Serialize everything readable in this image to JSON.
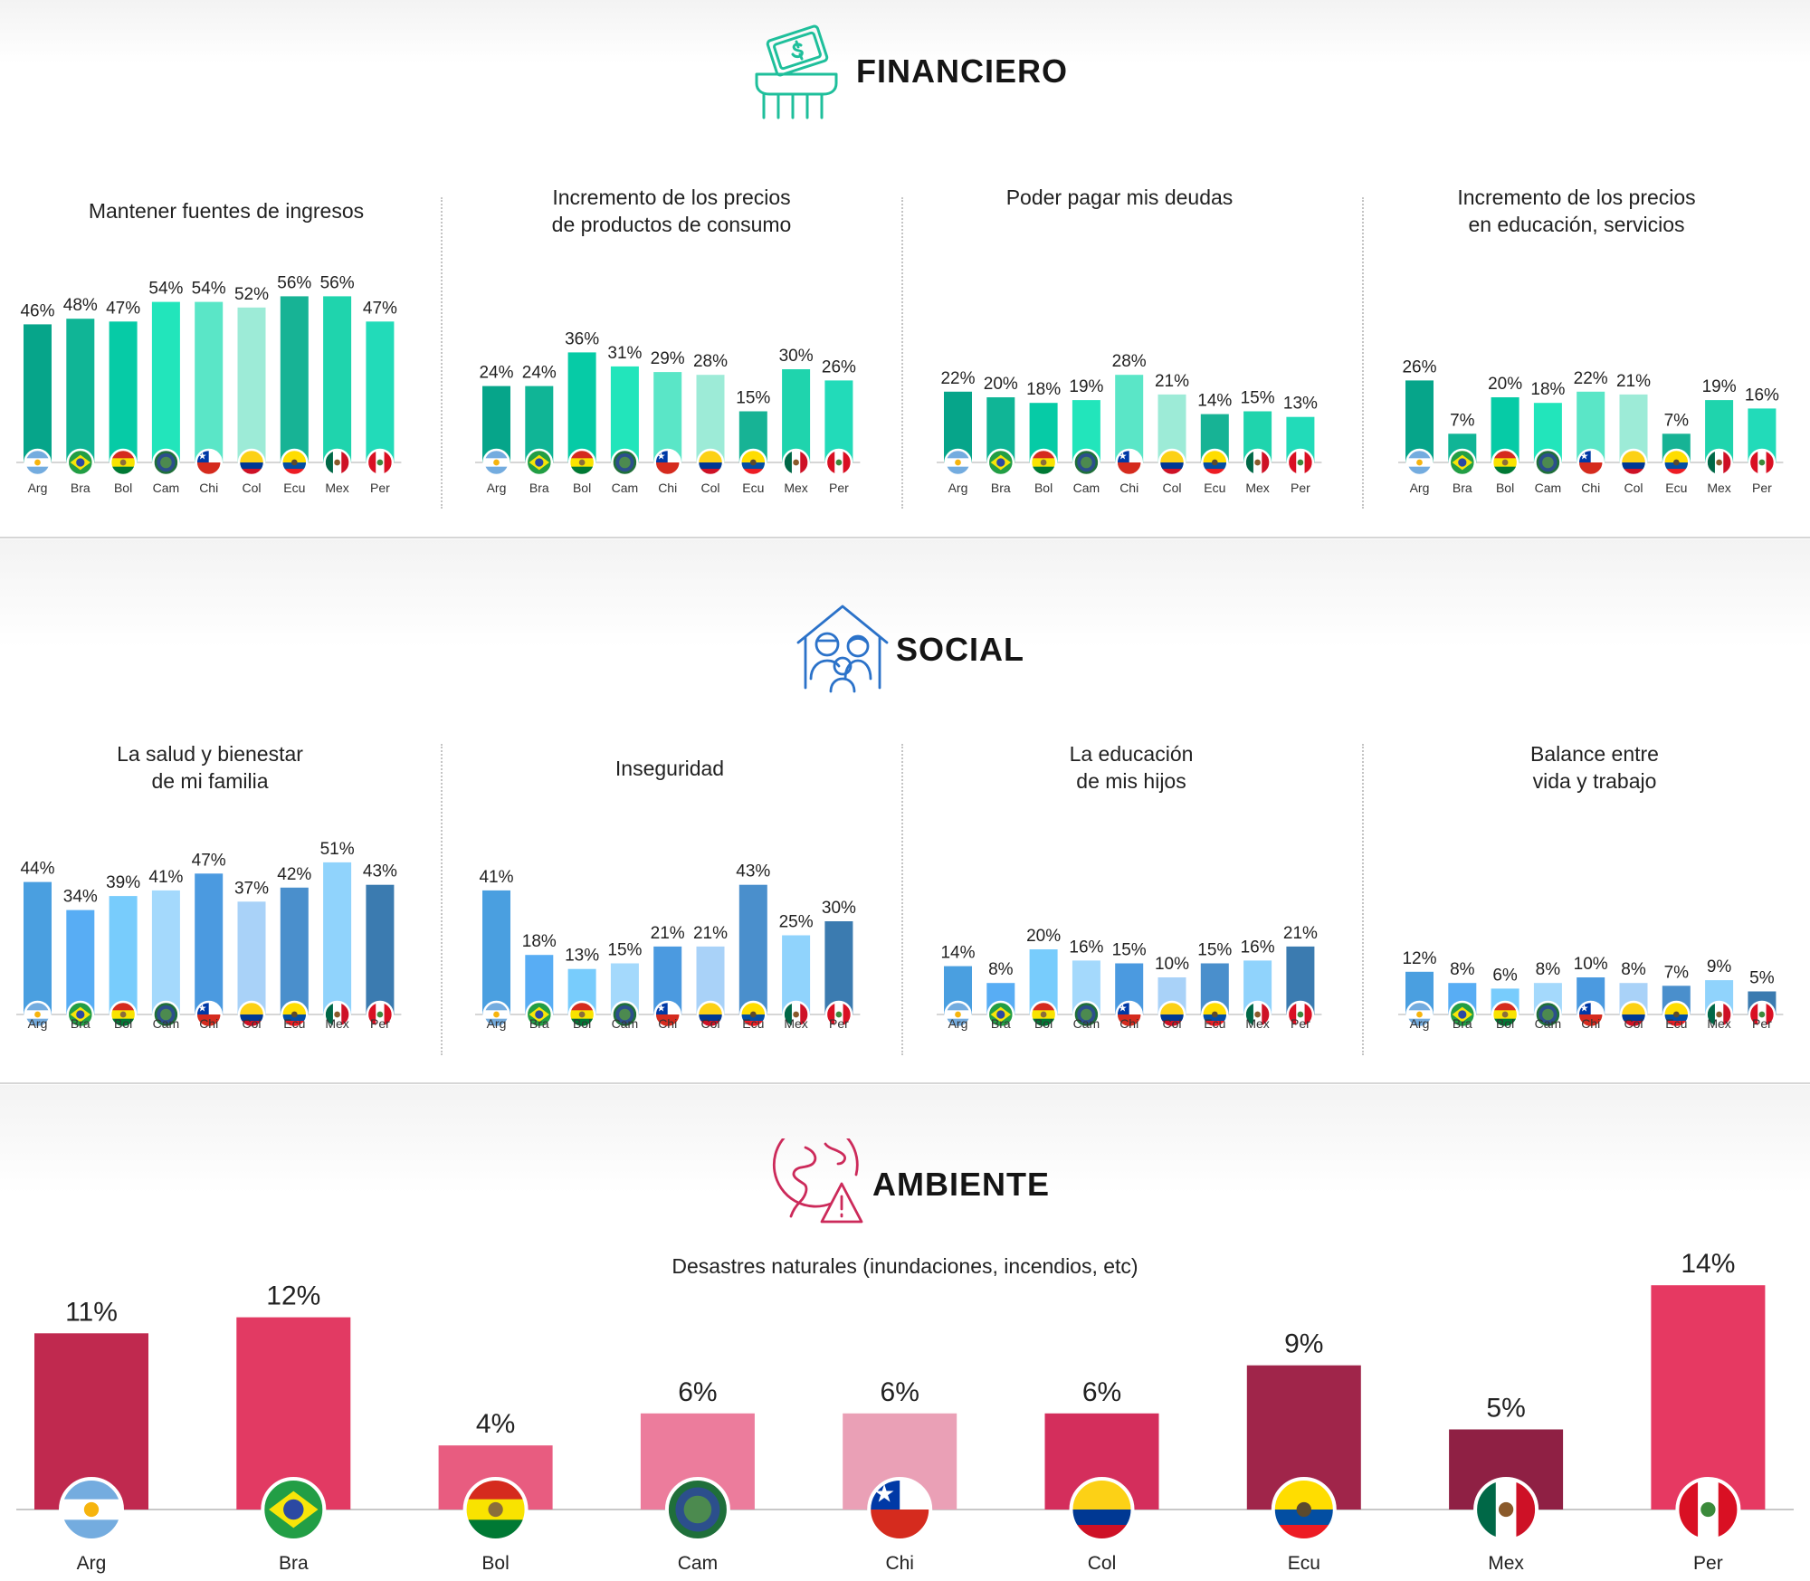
{
  "countries": [
    "Arg",
    "Bra",
    "Bol",
    "Cam",
    "Chi",
    "Col",
    "Ecu",
    "Mex",
    "Per"
  ],
  "sections": {
    "financiero": {
      "title": "FINANCIERO",
      "icon": "money-cash-register-icon",
      "color": "#1fbf9b"
    },
    "social": {
      "title": "SOCIAL",
      "icon": "family-house-icon",
      "color": "#2b72c9"
    },
    "ambiente": {
      "title": "AMBIENTE",
      "icon": "globe-warning-icon",
      "color": "#cc2a5a"
    }
  },
  "chart_data": [
    {
      "type": "bar",
      "section": "financiero",
      "title": "Mantener fuentes de ingresos",
      "categories": [
        "Arg",
        "Bra",
        "Bol",
        "Cam",
        "Chi",
        "Col",
        "Ecu",
        "Mex",
        "Per"
      ],
      "values": [
        46,
        48,
        47,
        54,
        54,
        52,
        56,
        56,
        47
      ],
      "labels": [
        "46%",
        "48%",
        "47%",
        "54%",
        "54%",
        "52%",
        "56%",
        "56%",
        "47%"
      ],
      "ylim": [
        0,
        60
      ]
    },
    {
      "type": "bar",
      "section": "financiero",
      "title": "Incremento de los precios\nde productos de consumo",
      "categories": [
        "Arg",
        "Bra",
        "Bol",
        "Cam",
        "Chi",
        "Col",
        "Ecu",
        "Mex",
        "Per"
      ],
      "values": [
        24,
        24,
        36,
        31,
        29,
        28,
        15,
        30,
        26
      ],
      "labels": [
        "24%",
        "24%",
        "36%",
        "31%",
        "29%",
        "28%",
        "15%",
        "30%",
        "26%"
      ],
      "ylim": [
        0,
        60
      ]
    },
    {
      "type": "bar",
      "section": "financiero",
      "title": "Poder pagar mis deudas",
      "categories": [
        "Arg",
        "Bra",
        "Bol",
        "Cam",
        "Chi",
        "Col",
        "Ecu",
        "Mex",
        "Per"
      ],
      "values": [
        22,
        20,
        18,
        19,
        28,
        21,
        14,
        15,
        13
      ],
      "labels": [
        "22%",
        "20%",
        "18%",
        "19%",
        "28%",
        "21%",
        "14%",
        "15%",
        "13%"
      ],
      "ylim": [
        0,
        60
      ]
    },
    {
      "type": "bar",
      "section": "financiero",
      "title": "Incremento de los precios\nen educación, servicios",
      "categories": [
        "Arg",
        "Bra",
        "Bol",
        "Cam",
        "Chi",
        "Col",
        "Ecu",
        "Mex",
        "Per"
      ],
      "values": [
        26,
        7,
        20,
        18,
        22,
        21,
        7,
        19,
        16
      ],
      "labels": [
        "26%",
        "7%",
        "20%",
        "18%",
        "22%",
        "21%",
        "7%",
        "19%",
        "16%"
      ],
      "ylim": [
        0,
        60
      ]
    },
    {
      "type": "bar",
      "section": "social",
      "title": "La salud y bienestar\nde mi familia",
      "categories": [
        "Arg",
        "Bra",
        "Bol",
        "Cam",
        "Chi",
        "Col",
        "Ecu",
        "Mex",
        "Per"
      ],
      "values": [
        44,
        34,
        39,
        41,
        47,
        37,
        42,
        51,
        43
      ],
      "labels": [
        "44%",
        "34%",
        "39%",
        "41%",
        "47%",
        "37%",
        "42%",
        "51%",
        "43%"
      ],
      "ylim": [
        0,
        60
      ]
    },
    {
      "type": "bar",
      "section": "social",
      "title": "Inseguridad",
      "categories": [
        "Arg",
        "Bra",
        "Bol",
        "Cam",
        "Chi",
        "Col",
        "Ecu",
        "Mex",
        "Per"
      ],
      "values": [
        41,
        18,
        13,
        15,
        21,
        21,
        43,
        25,
        30
      ],
      "labels": [
        "41%",
        "18%",
        "13%",
        "15%",
        "21%",
        "21%",
        "43%",
        "25%",
        "30%"
      ],
      "ylim": [
        0,
        60
      ]
    },
    {
      "type": "bar",
      "section": "social",
      "title": "La educación\nde mis hijos",
      "categories": [
        "Arg",
        "Bra",
        "Bol",
        "Cam",
        "Chi",
        "Col",
        "Ecu",
        "Mex",
        "Per"
      ],
      "values": [
        14,
        8,
        20,
        16,
        15,
        10,
        15,
        16,
        21
      ],
      "labels": [
        "14%",
        "8%",
        "20%",
        "16%",
        "15%",
        "10%",
        "15%",
        "16%",
        "21%"
      ],
      "ylim": [
        0,
        60
      ]
    },
    {
      "type": "bar",
      "section": "social",
      "title": "Balance entre\nvida y trabajo",
      "categories": [
        "Arg",
        "Bra",
        "Bol",
        "Cam",
        "Chi",
        "Col",
        "Ecu",
        "Mex",
        "Per"
      ],
      "values": [
        12,
        8,
        6,
        8,
        10,
        8,
        7,
        9,
        5
      ],
      "labels": [
        "12%",
        "8%",
        "6%",
        "8%",
        "10%",
        "8%",
        "7%",
        "9%",
        "5%"
      ],
      "ylim": [
        0,
        60
      ]
    },
    {
      "type": "bar",
      "section": "ambiente",
      "title": "Desastres naturales (inundaciones, incendios, etc)",
      "categories": [
        "Arg",
        "Bra",
        "Bol",
        "Cam",
        "Chi",
        "Col",
        "Ecu",
        "Mex",
        "Per"
      ],
      "values": [
        11,
        12,
        4,
        6,
        6,
        6,
        9,
        5,
        14
      ],
      "labels": [
        "11%",
        "12%",
        "4%",
        "6%",
        "6%",
        "6%",
        "9%",
        "5%",
        "14%"
      ],
      "ylim": [
        0,
        16
      ]
    }
  ],
  "palettes": {
    "financiero": [
      "#06a58a",
      "#10b596",
      "#06cba6",
      "#22e5bb",
      "#5ae6c7",
      "#9debd7",
      "#17b395",
      "#1fd4ad",
      "#22dbb9"
    ],
    "social": [
      "#4a9fe0",
      "#58adf4",
      "#78ccfc",
      "#a4d9fc",
      "#4b9ae0",
      "#a9d2f8",
      "#4a8fcc",
      "#90d3fc",
      "#3b7bb0"
    ],
    "ambiente": [
      "#c0294f",
      "#e23a63",
      "#e85c80",
      "#ec7c9c",
      "#eaa0b6",
      "#d42e5c",
      "#a0254a",
      "#8f2044",
      "#e63962"
    ]
  },
  "flags": {
    "Arg": {
      "icon": "argentina-flag-icon",
      "stripes": [
        "#74acdf",
        "#ffffff",
        "#74acdf"
      ],
      "emblem": "#f6b40e"
    },
    "Bra": {
      "icon": "brazil-flag-icon",
      "stripes": [
        "#229e45"
      ],
      "emblem": "#f8e509"
    },
    "Bol": {
      "icon": "bolivia-flag-icon",
      "stripes": [
        "#d52b1e",
        "#f9e300",
        "#007934"
      ],
      "emblem": "#8a6d3b"
    },
    "Cam": {
      "icon": "central-america-flag-icon",
      "stripes": [
        "#1f6f3a"
      ],
      "emblem": "#2c4f8c"
    },
    "Chi": {
      "icon": "chile-flag-icon",
      "stripes": [
        "#ffffff",
        "#d52b1e"
      ],
      "emblem": "#0039a6"
    },
    "Col": {
      "icon": "colombia-flag-icon",
      "stripes": [
        "#fcd116",
        "#fcd116",
        "#003893",
        "#ce1126"
      ],
      "emblem": ""
    },
    "Ecu": {
      "icon": "ecuador-flag-icon",
      "stripes": [
        "#ffdd00",
        "#ffdd00",
        "#034ea2",
        "#ed1c24"
      ],
      "emblem": "#5b4a2e"
    },
    "Mex": {
      "icon": "mexico-flag-icon",
      "stripes": [
        "#006847",
        "#ffffff",
        "#ce1126"
      ],
      "emblem": "#8a5a2b",
      "vertical": true
    },
    "Per": {
      "icon": "peru-flag-icon",
      "stripes": [
        "#d91023",
        "#ffffff",
        "#d91023"
      ],
      "emblem": "#3b8a3b",
      "vertical": true
    }
  }
}
